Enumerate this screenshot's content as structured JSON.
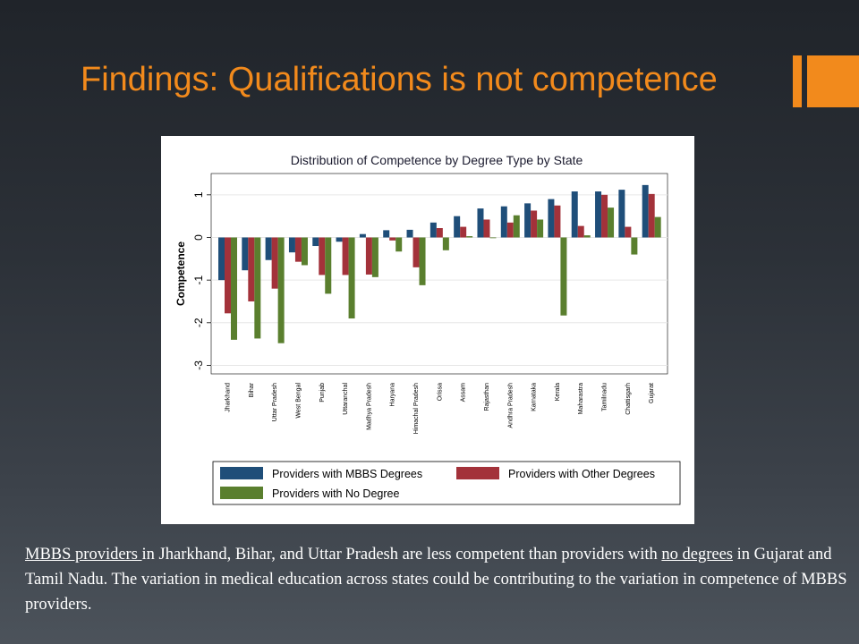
{
  "slide": {
    "title": "Findings: Qualifications is not competence"
  },
  "caption": {
    "part1_underlined": "MBBS providers ",
    "part2": "in Jharkhand, Bihar, and Uttar Pradesh are less competent than providers with ",
    "part3_underlined": "no degrees",
    "part4": " in Gujarat and Tamil Nadu. The variation in medical education across states could be contributing to the variation in competence of  MBBS providers."
  },
  "colors": {
    "title_accent": "#f28a1c",
    "mbbs": "#1f4e79",
    "other": "#a3323a",
    "none": "#5a7f2e"
  },
  "chart_data": {
    "type": "bar",
    "title": "Distribution of Competence by Degree Type by State",
    "xlabel": "",
    "ylabel": "Competence",
    "ylim": [
      -3.2,
      1.5
    ],
    "yticks": [
      1,
      0,
      -1,
      -2,
      -3
    ],
    "grid": true,
    "legend_position": "bottom",
    "categories": [
      "Jharkhand",
      "Bihar",
      "Uttar Pradesh",
      "West Bengal",
      "Punjab",
      "Uttaranchal",
      "Madhya Pradesh",
      "Haryana",
      "Himachal Pradesh",
      "Orissa",
      "Assam",
      "Rajasthan",
      "Andhra Pradesh",
      "Karnataka",
      "Kerala",
      "Maharastra",
      "Tamilnadu",
      "Chattisgarh",
      "Gujarat"
    ],
    "series": [
      {
        "name": "Providers with MBBS Degrees",
        "color": "#1f4e79",
        "values": [
          -1.0,
          -0.77,
          -0.53,
          -0.35,
          -0.2,
          -0.1,
          0.08,
          0.17,
          0.18,
          0.35,
          0.5,
          0.68,
          0.73,
          0.8,
          0.9,
          1.08,
          1.08,
          1.12,
          1.23
        ]
      },
      {
        "name": "Providers with Other Degrees",
        "color": "#a3323a",
        "values": [
          -1.78,
          -1.5,
          -1.2,
          -0.57,
          -0.88,
          -0.88,
          -0.87,
          -0.07,
          -0.7,
          0.22,
          0.25,
          0.42,
          0.35,
          0.63,
          0.75,
          0.27,
          1.0,
          0.25,
          1.02
        ]
      },
      {
        "name": "Providers with No Degree",
        "color": "#5a7f2e",
        "values": [
          -2.4,
          -2.37,
          -2.48,
          -0.65,
          -1.32,
          -1.9,
          -0.93,
          -0.33,
          -1.12,
          -0.3,
          0.03,
          0.0,
          0.52,
          0.42,
          -1.83,
          0.05,
          0.7,
          -0.4,
          0.48
        ]
      }
    ]
  }
}
